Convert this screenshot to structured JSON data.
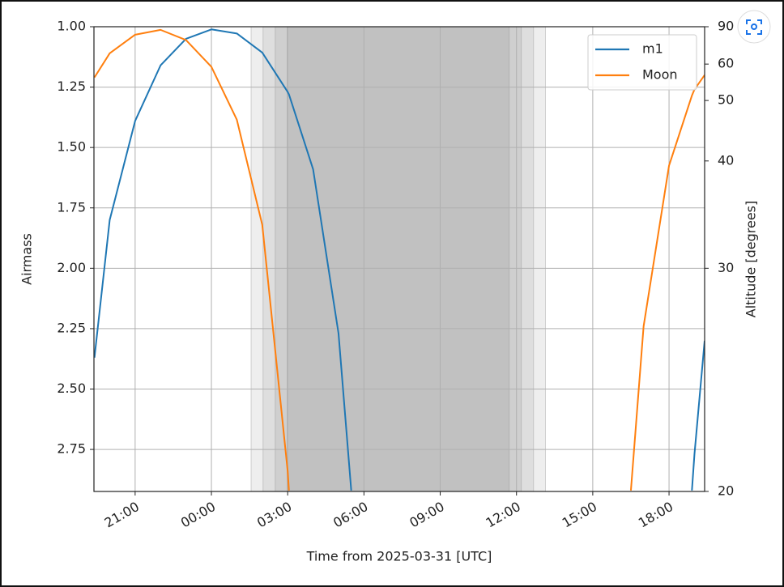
{
  "chart_data": {
    "type": "line",
    "xlabel": "Time from 2025-03-31 [UTC]",
    "ylabel": "Airmass",
    "y2label": "Altitude [degrees]",
    "x": [
      -4.6,
      -4,
      -3,
      -2,
      -1,
      0,
      1,
      2,
      3,
      3.05,
      4,
      5,
      5.5,
      6,
      16.5,
      17,
      18,
      18.9,
      19,
      19.4
    ],
    "series": [
      {
        "name": "m1",
        "color": "#1f77b4",
        "values": [
          2.37,
          1.8,
          1.39,
          1.16,
          1.05,
          1.011,
          1.028,
          1.107,
          1.27,
          1.28,
          1.59,
          2.27,
          2.92,
          null,
          null,
          null,
          null,
          2.92,
          2.77,
          2.3
        ]
      },
      {
        "name": "Moon",
        "color": "#ff7f0e",
        "values": [
          1.21,
          1.11,
          1.033,
          1.013,
          1.055,
          1.166,
          1.385,
          1.82,
          2.84,
          2.92,
          null,
          null,
          null,
          null,
          2.92,
          2.24,
          1.575,
          1.285,
          1.26,
          1.2
        ]
      }
    ],
    "shaded_spans": [
      [
        1.56,
        13.14
      ],
      [
        2.03,
        12.67
      ],
      [
        2.51,
        12.19
      ],
      [
        2.98,
        11.71
      ]
    ],
    "xlim": [
      -4.62,
      19.4
    ],
    "xticks": [
      {
        "value": -3,
        "label": "21:00"
      },
      {
        "value": 0,
        "label": "00:00"
      },
      {
        "value": 3,
        "label": "03:00"
      },
      {
        "value": 6,
        "label": "06:00"
      },
      {
        "value": 9,
        "label": "09:00"
      },
      {
        "value": 12,
        "label": "12:00"
      },
      {
        "value": 15,
        "label": "15:00"
      },
      {
        "value": 18,
        "label": "18:00"
      }
    ],
    "ylim": [
      1,
      2.924
    ],
    "y_inverted": true,
    "yticks": [
      {
        "value": 1,
        "label": "1.00"
      },
      {
        "value": 1.25,
        "label": "1.25"
      },
      {
        "value": 1.5,
        "label": "1.50"
      },
      {
        "value": 1.75,
        "label": "1.75"
      },
      {
        "value": 2,
        "label": "2.00"
      },
      {
        "value": 2.25,
        "label": "2.25"
      },
      {
        "value": 2.5,
        "label": "2.50"
      },
      {
        "value": 2.75,
        "label": "2.75"
      }
    ],
    "y2lim": [
      90,
      20
    ],
    "y2_transform": "airmass",
    "y2ticks": [
      90,
      60,
      50,
      40,
      30,
      20
    ],
    "grid": true,
    "legend": "upper-right"
  }
}
